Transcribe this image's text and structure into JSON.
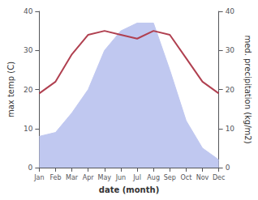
{
  "chart_data": {
    "type": "line",
    "xlabel": "date (month)",
    "ylabel": "max temp (C)",
    "y2label": "med. precipitation (kg/m2)",
    "categories": [
      "Jan",
      "Feb",
      "Mar",
      "Apr",
      "May",
      "Jun",
      "Jul",
      "Aug",
      "Sep",
      "Oct",
      "Nov",
      "Dec"
    ],
    "series": [
      {
        "type": "area",
        "color": "#c0c8f0",
        "axis": "y2",
        "values": [
          8,
          9,
          14,
          20,
          30,
          35,
          37,
          37,
          25,
          12,
          5,
          2
        ]
      },
      {
        "type": "line",
        "color": "#b04050",
        "values": [
          19,
          22,
          29,
          34,
          35,
          34,
          33,
          35,
          34,
          28,
          22,
          19
        ]
      }
    ],
    "ylim": [
      0,
      40
    ],
    "yticks": [
      0,
      10,
      20,
      30,
      40
    ],
    "y2lim": [
      0,
      40
    ],
    "y2ticks": [
      0,
      10,
      20,
      30,
      40
    ],
    "grid": false
  }
}
